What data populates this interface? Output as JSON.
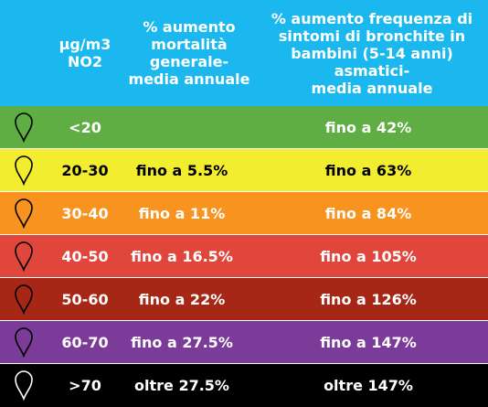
{
  "header": {
    "col1": "µg/m3\nNO2",
    "col2": "% aumento\nmortalità\ngenerale-\nmedia annuale",
    "col3": "% aumento frequenza di\nsintomi di bronchite in\nbambini (5-14 anni) asmatici-\nmedia annuale"
  },
  "rows": [
    {
      "range": "<20",
      "mortality": "",
      "bronchitis": "fino a 42%",
      "bg": "#5fae43",
      "fg": "#ffffff",
      "icon": "map-pin-icon"
    },
    {
      "range": "20-30",
      "mortality": "fino a 5.5%",
      "bronchitis": "fino a 63%",
      "bg": "#f2ed2e",
      "fg": "#000000",
      "icon": "map-pin-icon"
    },
    {
      "range": "30-40",
      "mortality": "fino a 11%",
      "bronchitis": "fino a 84%",
      "bg": "#f7931e",
      "fg": "#ffffff",
      "icon": "map-pin-icon"
    },
    {
      "range": "40-50",
      "mortality": "fino a 16.5%",
      "bronchitis": "fino a 105%",
      "bg": "#e0463c",
      "fg": "#ffffff",
      "icon": "map-pin-icon"
    },
    {
      "range": "50-60",
      "mortality": "fino a 22%",
      "bronchitis": "fino a 126%",
      "bg": "#a72717",
      "fg": "#ffffff",
      "icon": "map-pin-icon"
    },
    {
      "range": "60-70",
      "mortality": "fino a 27.5%",
      "bronchitis": "fino a 147%",
      "bg": "#7b3b98",
      "fg": "#ffffff",
      "icon": "map-pin-icon"
    },
    {
      "range": ">70",
      "mortality": "oltre 27.5%",
      "bronchitis": "oltre 147%",
      "bg": "#000000",
      "fg": "#ffffff",
      "icon": "map-pin-icon"
    }
  ]
}
